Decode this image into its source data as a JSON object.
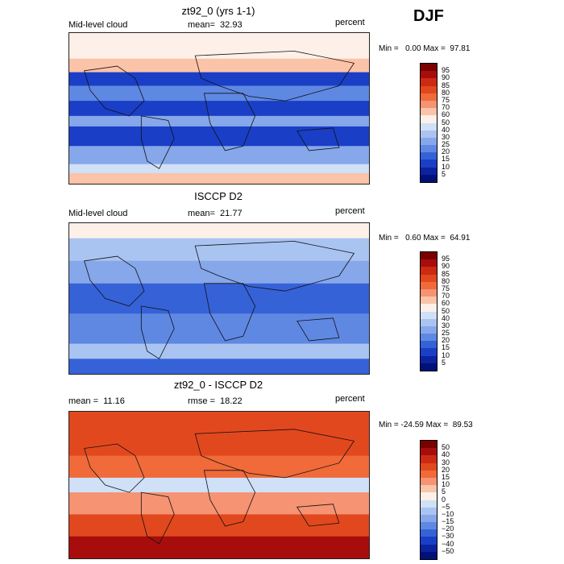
{
  "season": "DJF",
  "panels": [
    {
      "title": "zt92_0 (yrs 1-1)",
      "left_label": "Mid-level cloud",
      "mid_label": "mean=  32.93",
      "units": "percent",
      "minmax": "Min =   0.00 Max =  97.81",
      "levels": [
        "95",
        "90",
        "85",
        "80",
        "75",
        "70",
        "60",
        "50",
        "40",
        "30",
        "25",
        "20",
        "15",
        "10",
        "5"
      ],
      "colors": [
        "#7a0000",
        "#a80d0d",
        "#cc2a12",
        "#e2481e",
        "#f06a3a",
        "#f59373",
        "#fbc3a8",
        "#fdf0e8",
        "#cfe0f7",
        "#a9c4f1",
        "#86a7ea",
        "#5f88e3",
        "#3662d8",
        "#1a3fc6",
        "#0d229f",
        "#00117a"
      ],
      "map_style": "model"
    },
    {
      "title": "ISCCP D2",
      "left_label": "Mid-level cloud",
      "mid_label": "mean=  21.77",
      "units": "percent",
      "minmax": "Min =   0.60 Max =  64.91",
      "levels": [
        "95",
        "90",
        "85",
        "80",
        "75",
        "70",
        "60",
        "50",
        "40",
        "30",
        "25",
        "20",
        "15",
        "10",
        "5"
      ],
      "colors": [
        "#7a0000",
        "#a80d0d",
        "#cc2a12",
        "#e2481e",
        "#f06a3a",
        "#f59373",
        "#fbc3a8",
        "#fdf0e8",
        "#cfe0f7",
        "#a9c4f1",
        "#86a7ea",
        "#5f88e3",
        "#3662d8",
        "#1a3fc6",
        "#0d229f",
        "#00117a"
      ],
      "map_style": "obs"
    },
    {
      "title": "zt92_0 - ISCCP D2",
      "left_label": "mean =  11.16",
      "mid_label": "rmse =  18.22",
      "units": "percent",
      "minmax": "Min = -24.59 Max =  89.53",
      "levels": [
        "50",
        "40",
        "30",
        "20",
        "15",
        "10",
        "5",
        "0",
        "−5",
        "−10",
        "−15",
        "−20",
        "−30",
        "−40",
        "−50"
      ],
      "colors": [
        "#7a0000",
        "#a80d0d",
        "#cc2a12",
        "#e2481e",
        "#f06a3a",
        "#f59373",
        "#fbc3a8",
        "#fdf0e8",
        "#cfe0f7",
        "#a9c4f1",
        "#86a7ea",
        "#5f88e3",
        "#3662d8",
        "#1a3fc6",
        "#0d229f",
        "#00117a"
      ],
      "map_style": "diff"
    }
  ]
}
